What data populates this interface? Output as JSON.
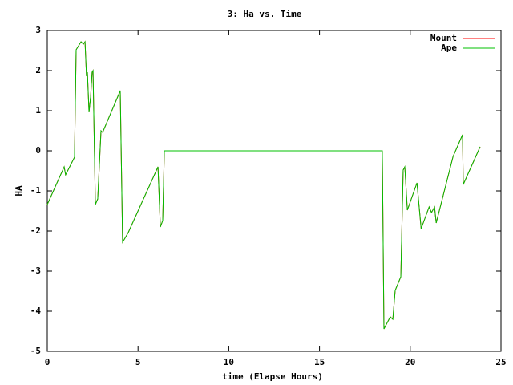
{
  "chart_data": {
    "type": "line",
    "title": "3: Ha vs. Time",
    "x_label": "time (Elapse Hours)",
    "y_label": "HA",
    "x": [
      0,
      0.93,
      1.01,
      1.5,
      1.59,
      1.86,
      1.99,
      2.08,
      2.16,
      2.21,
      2.3,
      2.39,
      2.47,
      2.52,
      2.65,
      2.78,
      2.96,
      3.05,
      3.93,
      4.02,
      4.15,
      4.46,
      6.1,
      6.23,
      6.36,
      6.45,
      18.46,
      18.55,
      18.9,
      19.04,
      19.17,
      19.48,
      19.61,
      19.7,
      19.84,
      20.37,
      20.6,
      21.04,
      21.17,
      21.34,
      21.43,
      22.36,
      22.88,
      22.92,
      23.85
    ],
    "series": [
      {
        "name": "Mount",
        "color": "#ff0000",
        "values": [
          -1.34,
          -0.4,
          -0.6,
          -0.16,
          2.52,
          2.72,
          2.66,
          2.72,
          1.86,
          1.96,
          0.96,
          1.36,
          1.96,
          2.0,
          -1.34,
          -1.2,
          0.5,
          0.46,
          1.4,
          1.5,
          -2.28,
          -2.04,
          -0.4,
          -1.9,
          -1.74,
          0,
          0,
          -4.44,
          -4.14,
          -4.2,
          -3.48,
          -3.14,
          -0.48,
          -0.4,
          -1.48,
          -0.8,
          -1.94,
          -1.4,
          -1.54,
          -1.4,
          -1.8,
          -0.14,
          0.4,
          -0.84,
          0.1
        ]
      },
      {
        "name": "Ape",
        "color": "#00c000",
        "values": [
          -1.34,
          -0.4,
          -0.6,
          -0.16,
          2.52,
          2.72,
          2.66,
          2.72,
          1.86,
          1.96,
          0.96,
          1.36,
          1.96,
          2.0,
          -1.34,
          -1.2,
          0.5,
          0.46,
          1.4,
          1.5,
          -2.28,
          -2.04,
          -0.4,
          -1.9,
          -1.74,
          0,
          0,
          -4.44,
          -4.14,
          -4.2,
          -3.48,
          -3.14,
          -0.48,
          -0.4,
          -1.48,
          -0.8,
          -1.94,
          -1.4,
          -1.54,
          -1.4,
          -1.8,
          -0.14,
          0.4,
          -0.84,
          0.1
        ]
      }
    ],
    "xlim": [
      0,
      25
    ],
    "xticks": [
      0,
      5,
      10,
      15,
      20,
      25
    ],
    "ylim": [
      -5,
      3
    ],
    "yticks": [
      -5,
      -4,
      -3,
      -2,
      -1,
      0,
      1,
      2,
      3
    ],
    "grid": false,
    "legend": "top-right"
  }
}
